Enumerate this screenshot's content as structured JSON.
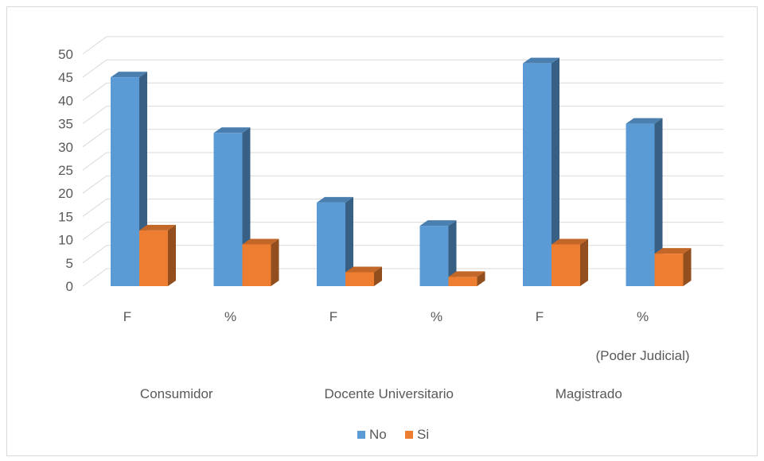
{
  "chart_data": {
    "type": "bar",
    "variant": "3d-clustered-column",
    "title": "",
    "xlabel": "",
    "ylabel": "",
    "ylim": [
      0,
      50
    ],
    "y_ticks": [
      0,
      5,
      10,
      15,
      20,
      25,
      30,
      35,
      40,
      45,
      50
    ],
    "grid": true,
    "legend_position": "bottom",
    "categories": [
      "F",
      "%",
      "F",
      "%",
      "F",
      "%"
    ],
    "groups": [
      {
        "label": "Consumidor",
        "sublabel": ""
      },
      {
        "label": "Docente Universitario",
        "sublabel": ""
      },
      {
        "label": "Magistrado",
        "sublabel": "(Poder Judicial)"
      }
    ],
    "series": [
      {
        "name": "No",
        "color": "#5b9bd5",
        "values": [
          45,
          33,
          18,
          13,
          48,
          35
        ]
      },
      {
        "name": "Si",
        "color": "#ed7d31",
        "values": [
          12,
          9,
          3,
          2,
          9,
          7
        ]
      }
    ]
  }
}
